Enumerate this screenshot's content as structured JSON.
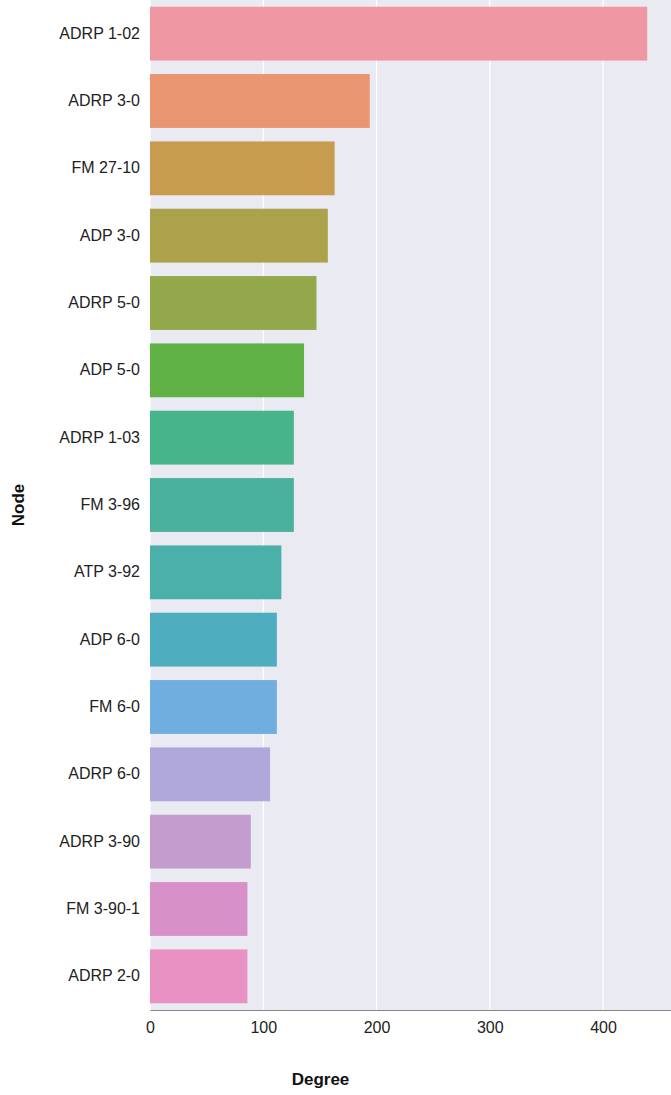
{
  "chart_data": {
    "type": "bar",
    "orientation": "horizontal",
    "x_label": "Degree",
    "y_label": "Node",
    "categories": [
      "ADRP 1-02",
      "ADRP 3-0",
      "FM 27-10",
      "ADP 3-0",
      "ADRP 5-0",
      "ADP 5-0",
      "ADRP 1-03",
      "FM 3-96",
      "ATP 3-92",
      "ADP 6-0",
      "FM 6-0",
      "ADRP 6-0",
      "ADRP 3-90",
      "FM 3-90-1",
      "ADRP 2-0"
    ],
    "values": [
      439,
      194,
      163,
      157,
      147,
      136,
      127,
      127,
      116,
      112,
      112,
      106,
      89,
      86,
      86
    ],
    "colors": [
      "#ef98a4",
      "#e9956f",
      "#c89c4e",
      "#aba24b",
      "#93a84a",
      "#5fb146",
      "#48b48b",
      "#4ab19d",
      "#4cb0aa",
      "#4fadc0",
      "#70aee0",
      "#b0a8db",
      "#c49ccd",
      "#d891c8",
      "#ea91c4"
    ],
    "xlim": [
      0,
      460
    ],
    "xticks": [
      0,
      100,
      200,
      300,
      400
    ],
    "grid": true
  }
}
